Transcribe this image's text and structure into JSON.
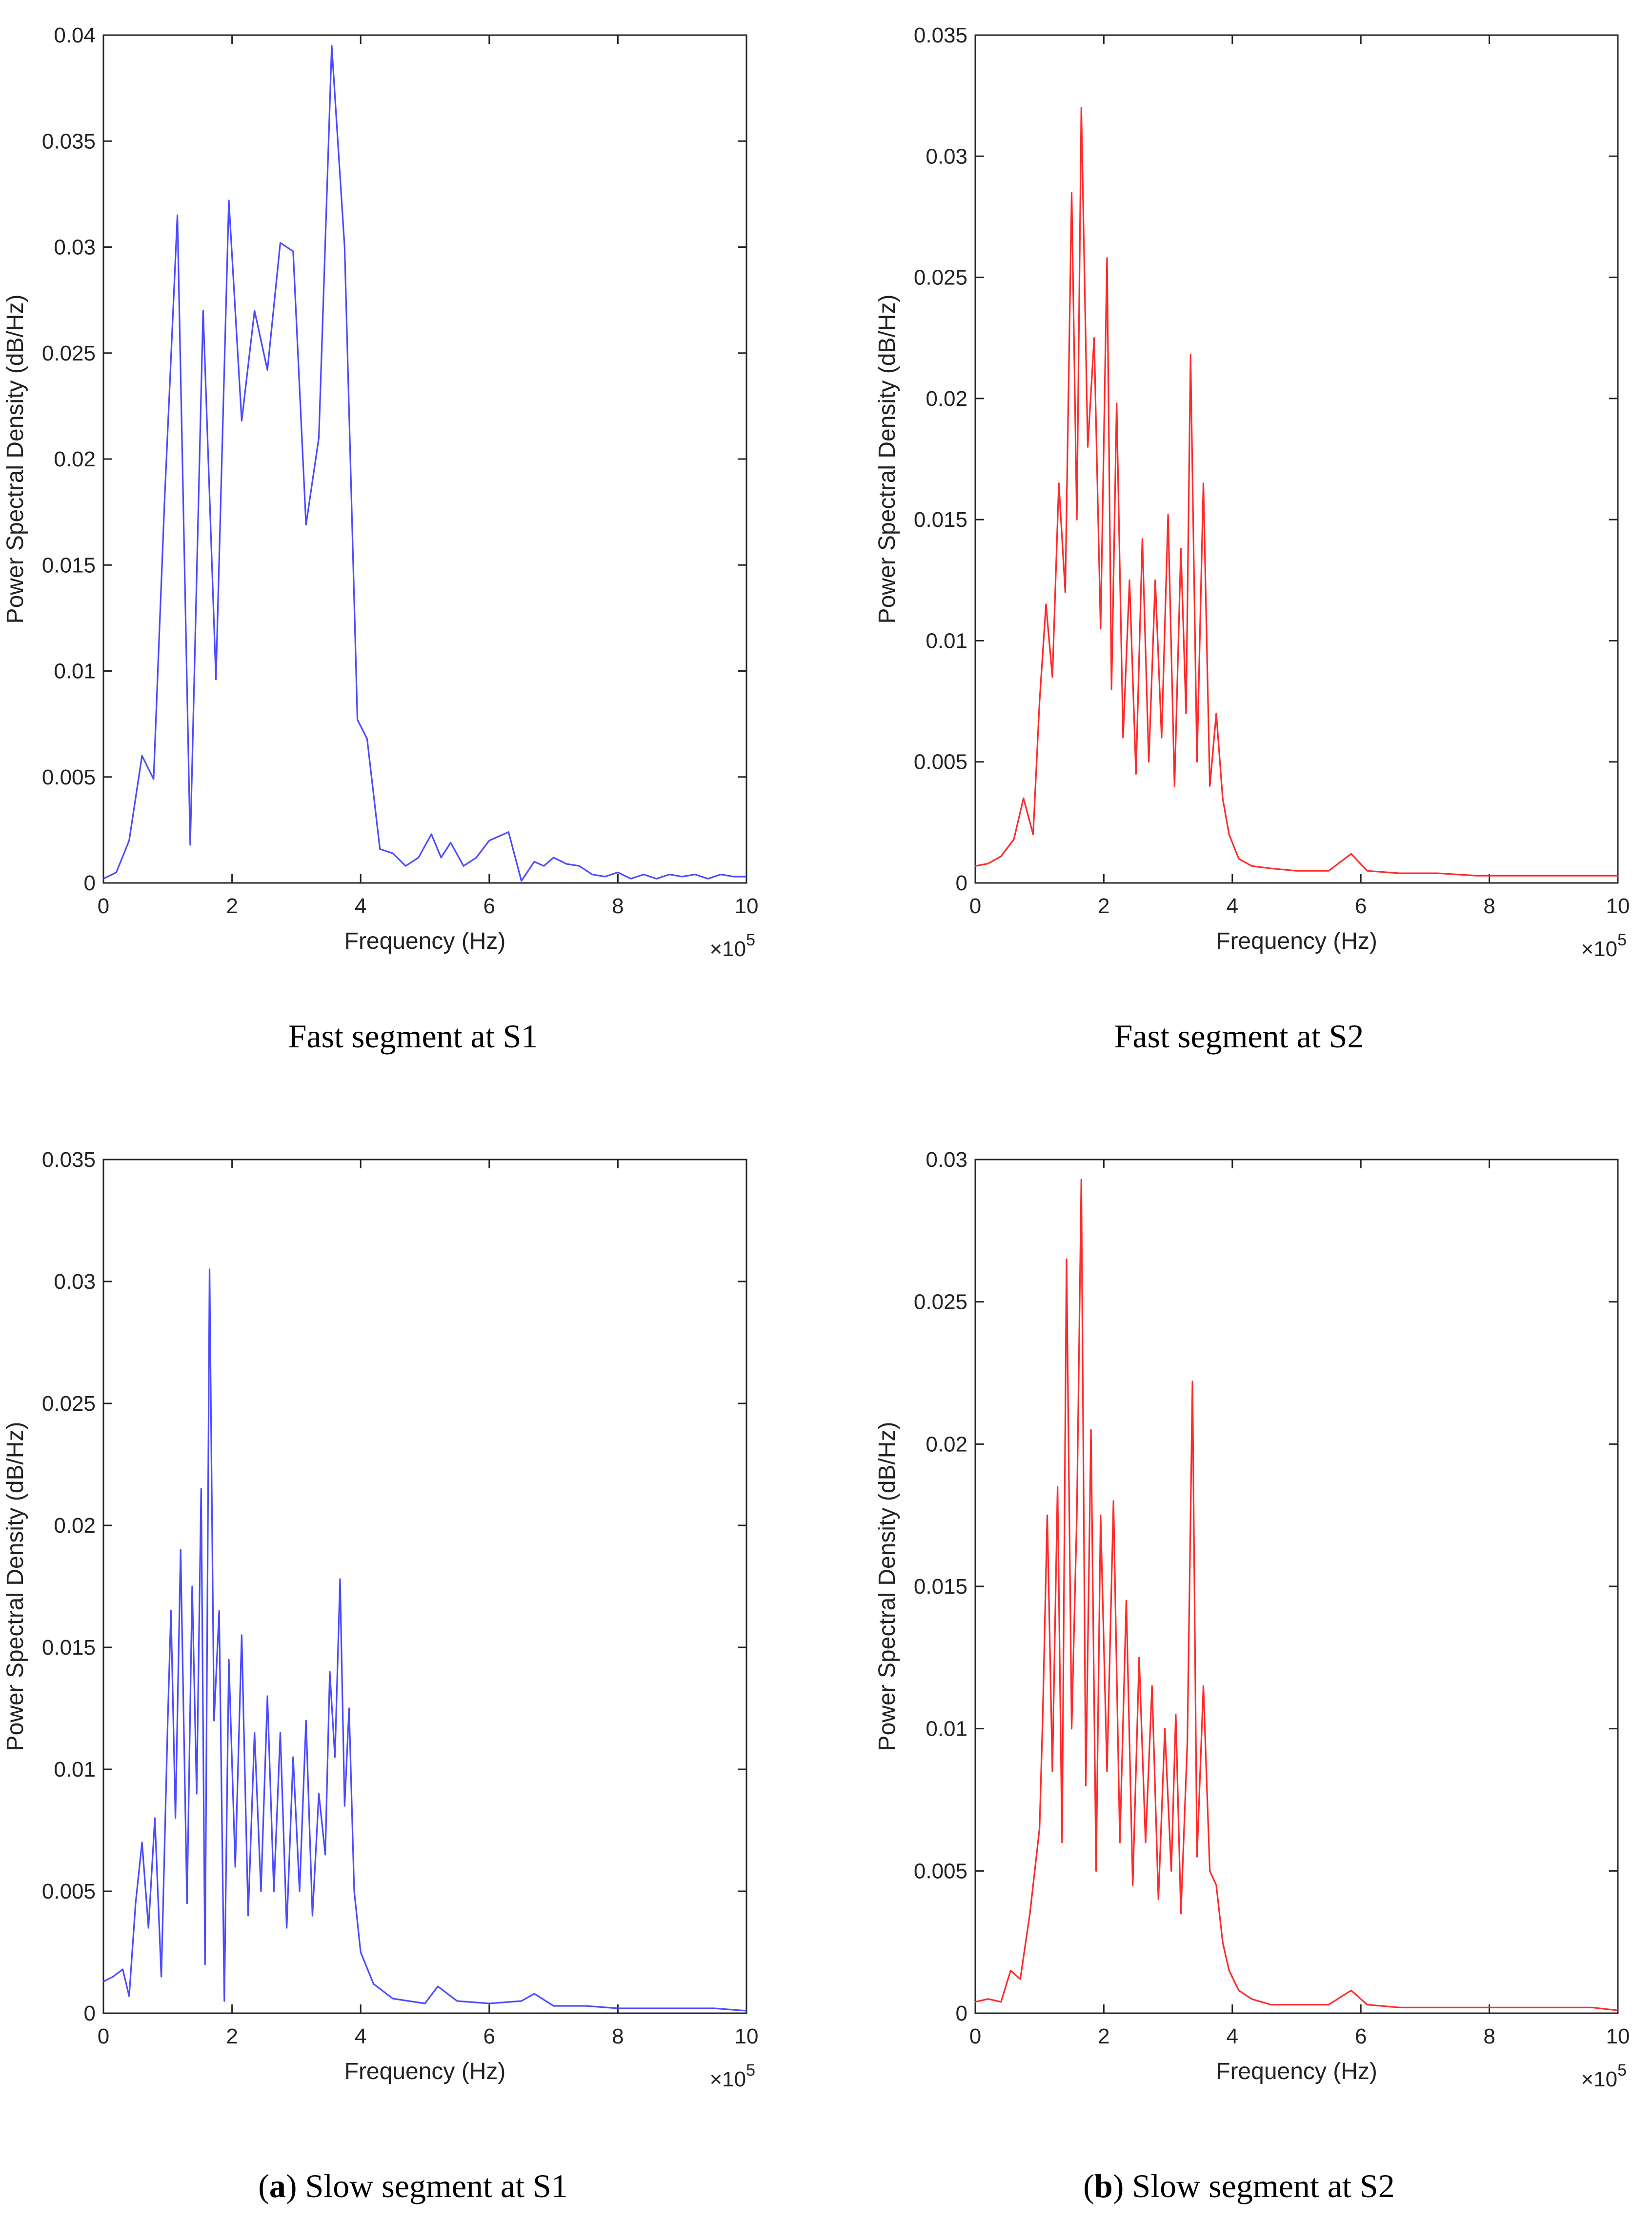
{
  "colors": {
    "blue": "#4b4bff",
    "red": "#ff2a2a",
    "axis": "#262626"
  },
  "chart_data": [
    {
      "type": "line",
      "caption_prefix": "",
      "caption_bold": "",
      "caption_suffix": "Fast segment at S1",
      "xlabel": "Frequency (Hz)",
      "ylabel": "Power Spectral Density (dB/Hz)",
      "x_exponent_base": "×10",
      "x_exponent_power": "5",
      "xlim": [
        0,
        10
      ],
      "ylim": [
        0,
        0.04
      ],
      "xticks": [
        "0",
        "2",
        "4",
        "6",
        "8",
        "10"
      ],
      "yticks": [
        "0",
        "0.005",
        "0.01",
        "0.015",
        "0.02",
        "0.025",
        "0.03",
        "0.035",
        "0.04"
      ],
      "series": [
        {
          "name": "Fast segment at S1",
          "color": "blue",
          "x": [
            0,
            0.2,
            0.4,
            0.6,
            0.78,
            0.95,
            1.15,
            1.35,
            1.55,
            1.75,
            1.95,
            2.15,
            2.35,
            2.55,
            2.75,
            2.95,
            3.15,
            3.35,
            3.55,
            3.75,
            3.95,
            4.1,
            4.3,
            4.5,
            4.7,
            4.9,
            5.1,
            5.25,
            5.4,
            5.6,
            5.8,
            6.0,
            6.3,
            6.5,
            6.7,
            6.85,
            7.0,
            7.2,
            7.4,
            7.6,
            7.8,
            8.0,
            8.2,
            8.4,
            8.6,
            8.8,
            9.0,
            9.2,
            9.4,
            9.6,
            9.8,
            10.0
          ],
          "y": [
            0.0002,
            0.0005,
            0.002,
            0.006,
            0.0049,
            0.018,
            0.0315,
            0.0018,
            0.027,
            0.0096,
            0.0322,
            0.0218,
            0.027,
            0.0242,
            0.0302,
            0.0298,
            0.0169,
            0.021,
            0.0395,
            0.03,
            0.0077,
            0.0068,
            0.0016,
            0.0014,
            0.0008,
            0.0012,
            0.0023,
            0.0012,
            0.0019,
            0.0008,
            0.0012,
            0.002,
            0.0024,
            0.0001,
            0.001,
            0.0008,
            0.0012,
            0.0009,
            0.0008,
            0.0004,
            0.0003,
            0.0005,
            0.0002,
            0.0004,
            0.0002,
            0.0004,
            0.0003,
            0.0004,
            0.0002,
            0.0004,
            0.0003,
            0.0003
          ]
        }
      ]
    },
    {
      "type": "line",
      "caption_prefix": "",
      "caption_bold": "",
      "caption_suffix": "Fast segment at S2",
      "xlabel": "Frequency (Hz)",
      "ylabel": "Power Spectral Density (dB/Hz)",
      "x_exponent_base": "×10",
      "x_exponent_power": "5",
      "xlim": [
        0,
        10
      ],
      "ylim": [
        0,
        0.035
      ],
      "xticks": [
        "0",
        "2",
        "4",
        "6",
        "8",
        "10"
      ],
      "yticks": [
        "0",
        "0.005",
        "0.01",
        "0.015",
        "0.02",
        "0.025",
        "0.03",
        "0.035"
      ],
      "series": [
        {
          "name": "Fast segment at S2",
          "color": "red",
          "x": [
            0,
            0.2,
            0.4,
            0.6,
            0.75,
            0.9,
            1.0,
            1.1,
            1.2,
            1.3,
            1.4,
            1.5,
            1.58,
            1.65,
            1.75,
            1.85,
            1.95,
            2.05,
            2.12,
            2.2,
            2.3,
            2.4,
            2.5,
            2.6,
            2.7,
            2.8,
            2.9,
            3.0,
            3.1,
            3.2,
            3.28,
            3.35,
            3.45,
            3.55,
            3.65,
            3.75,
            3.85,
            3.95,
            4.1,
            4.3,
            4.6,
            5.0,
            5.5,
            5.85,
            6.1,
            6.6,
            7.2,
            7.8,
            8.4,
            9.0,
            9.6,
            10.0
          ],
          "y": [
            0.0007,
            0.0008,
            0.0011,
            0.0018,
            0.0035,
            0.002,
            0.0075,
            0.0115,
            0.0085,
            0.0165,
            0.012,
            0.0285,
            0.015,
            0.032,
            0.018,
            0.0225,
            0.0105,
            0.0258,
            0.008,
            0.0198,
            0.006,
            0.0125,
            0.0045,
            0.0142,
            0.005,
            0.0125,
            0.006,
            0.0152,
            0.004,
            0.0138,
            0.007,
            0.0218,
            0.005,
            0.0165,
            0.004,
            0.007,
            0.0035,
            0.002,
            0.001,
            0.0007,
            0.0006,
            0.0005,
            0.0005,
            0.0012,
            0.0005,
            0.0004,
            0.0004,
            0.0003,
            0.0003,
            0.0003,
            0.0003,
            0.0003
          ]
        }
      ]
    },
    {
      "type": "line",
      "caption_prefix": "(",
      "caption_bold": "a",
      "caption_suffix": ") Slow segment at S1",
      "xlabel": "Frequency (Hz)",
      "ylabel": "Power Spectral Density (dB/Hz)",
      "x_exponent_base": "×10",
      "x_exponent_power": "5",
      "xlim": [
        0,
        10
      ],
      "ylim": [
        0,
        0.035
      ],
      "xticks": [
        "0",
        "2",
        "4",
        "6",
        "8",
        "10"
      ],
      "yticks": [
        "0",
        "0.005",
        "0.01",
        "0.015",
        "0.02",
        "0.025",
        "0.03",
        "0.035"
      ],
      "series": [
        {
          "name": "Slow segment at S1",
          "color": "blue",
          "x": [
            0,
            0.15,
            0.3,
            0.4,
            0.5,
            0.6,
            0.7,
            0.8,
            0.9,
            1.0,
            1.05,
            1.12,
            1.2,
            1.3,
            1.38,
            1.45,
            1.52,
            1.58,
            1.65,
            1.72,
            1.8,
            1.88,
            1.95,
            2.05,
            2.15,
            2.25,
            2.35,
            2.45,
            2.55,
            2.65,
            2.75,
            2.85,
            2.95,
            3.05,
            3.15,
            3.25,
            3.35,
            3.45,
            3.52,
            3.6,
            3.68,
            3.75,
            3.82,
            3.9,
            4.0,
            4.2,
            4.5,
            5.0,
            5.2,
            5.5,
            6.0,
            6.5,
            6.7,
            7.0,
            7.5,
            8.0,
            8.5,
            9.0,
            9.5,
            10.0
          ],
          "y": [
            0.0013,
            0.0015,
            0.0018,
            0.0007,
            0.0045,
            0.007,
            0.0035,
            0.008,
            0.0015,
            0.012,
            0.0165,
            0.008,
            0.019,
            0.0045,
            0.0175,
            0.009,
            0.0215,
            0.002,
            0.0305,
            0.012,
            0.0165,
            0.0005,
            0.0145,
            0.006,
            0.0155,
            0.004,
            0.0115,
            0.005,
            0.013,
            0.005,
            0.0115,
            0.0035,
            0.0105,
            0.005,
            0.012,
            0.004,
            0.009,
            0.0065,
            0.014,
            0.0105,
            0.0178,
            0.0085,
            0.0125,
            0.005,
            0.0025,
            0.0012,
            0.0006,
            0.0004,
            0.0011,
            0.0005,
            0.0004,
            0.0005,
            0.0008,
            0.0003,
            0.0003,
            0.0002,
            0.0002,
            0.0002,
            0.0002,
            0.0001
          ]
        }
      ]
    },
    {
      "type": "line",
      "caption_prefix": "(",
      "caption_bold": "b",
      "caption_suffix": ") Slow segment at S2",
      "xlabel": "Frequency (Hz)",
      "ylabel": "Power Spectral Density (dB/Hz)",
      "x_exponent_base": "×10",
      "x_exponent_power": "5",
      "xlim": [
        0,
        10
      ],
      "ylim": [
        0,
        0.03
      ],
      "xticks": [
        "0",
        "2",
        "4",
        "6",
        "8",
        "10"
      ],
      "yticks": [
        "0",
        "0.005",
        "0.01",
        "0.015",
        "0.02",
        "0.025",
        "0.03"
      ],
      "series": [
        {
          "name": "Slow segment at S2",
          "color": "red",
          "x": [
            0,
            0.2,
            0.4,
            0.55,
            0.7,
            0.85,
            1.0,
            1.05,
            1.12,
            1.2,
            1.28,
            1.35,
            1.42,
            1.5,
            1.58,
            1.65,
            1.72,
            1.8,
            1.88,
            1.95,
            2.05,
            2.15,
            2.25,
            2.35,
            2.45,
            2.55,
            2.65,
            2.75,
            2.85,
            2.95,
            3.05,
            3.12,
            3.2,
            3.3,
            3.38,
            3.45,
            3.55,
            3.65,
            3.75,
            3.85,
            3.95,
            4.1,
            4.3,
            4.6,
            5.0,
            5.5,
            5.85,
            6.1,
            6.6,
            7.2,
            7.8,
            8.4,
            9.0,
            9.6,
            10.0
          ],
          "y": [
            0.0004,
            0.0005,
            0.0004,
            0.0015,
            0.0012,
            0.0035,
            0.0065,
            0.0105,
            0.0175,
            0.0085,
            0.0185,
            0.006,
            0.0265,
            0.01,
            0.0175,
            0.0293,
            0.008,
            0.0205,
            0.005,
            0.0175,
            0.0085,
            0.018,
            0.006,
            0.0145,
            0.0045,
            0.0125,
            0.006,
            0.0115,
            0.004,
            0.01,
            0.005,
            0.0105,
            0.0035,
            0.0095,
            0.0222,
            0.0055,
            0.0115,
            0.005,
            0.0045,
            0.0025,
            0.0015,
            0.0008,
            0.0005,
            0.0003,
            0.0003,
            0.0003,
            0.0008,
            0.0003,
            0.0002,
            0.0002,
            0.0002,
            0.0002,
            0.0002,
            0.0002,
            0.0001
          ]
        }
      ]
    }
  ]
}
